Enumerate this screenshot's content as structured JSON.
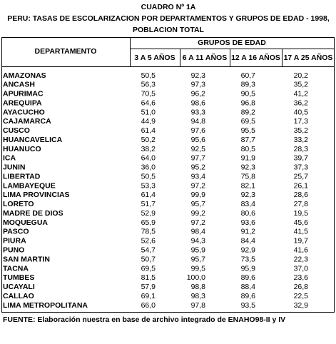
{
  "header": {
    "title": "CUADRO Nº 1A",
    "subtitle": [
      "PERU: TASAS DE ESCOLARIZACION POR DEPARTAMENTOS Y GRUPOS DE EDAD - 1998,",
      "POBLACION TOTAL"
    ]
  },
  "table": {
    "row_header": "DEPARTAMENTO",
    "group_header": "GRUPOS DE EDAD",
    "columns": [
      "3 A 5 AÑOS",
      "6 A 11 AÑOS",
      "12 A 16 AÑOS",
      "17 A 25 AÑOS"
    ],
    "rows": [
      [
        "AMAZONAS",
        "50,5",
        "92,3",
        "60,7",
        "20,2"
      ],
      [
        "ANCASH",
        "56,3",
        "97,3",
        "89,3",
        "35,2"
      ],
      [
        "APURIMAC",
        "70,5",
        "96,2",
        "90,5",
        "41,2"
      ],
      [
        "AREQUIPA",
        "64,6",
        "98,6",
        "96,8",
        "36,2"
      ],
      [
        "AYACUCHO",
        "51,0",
        "93,3",
        "89,2",
        "40,5"
      ],
      [
        "CAJAMARCA",
        "44,9",
        "94,8",
        "69,5",
        "17,3"
      ],
      [
        "CUSCO",
        "61,4",
        "97,6",
        "95,5",
        "35,2"
      ],
      [
        "HUANCAVELICA",
        "50,2",
        "95,6",
        "87,7",
        "33,2"
      ],
      [
        "HUANUCO",
        "38,2",
        "92,5",
        "80,5",
        "28,3"
      ],
      [
        "ICA",
        "64,0",
        "97,7",
        "91,9",
        "39,7"
      ],
      [
        "JUNIN",
        "36,0",
        "95,2",
        "92,3",
        "37,3"
      ],
      [
        "LIBERTAD",
        "50,5",
        "93,4",
        "75,8",
        "25,7"
      ],
      [
        "LAMBAYEQUE",
        "53,3",
        "97,2",
        "82,1",
        "26,1"
      ],
      [
        "LIMA PROVINCIAS",
        "61,4",
        "99,9",
        "92,3",
        "28,6"
      ],
      [
        "LORETO",
        "51,7",
        "95,7",
        "83,4",
        "27,8"
      ],
      [
        "MADRE DE DIOS",
        "52,9",
        "99,2",
        "80,6",
        "19,5"
      ],
      [
        "MOQUEGUA",
        "65,9",
        "97,2",
        "93,6",
        "45,6"
      ],
      [
        "PASCO",
        "78,5",
        "98,4",
        "91,2",
        "41,5"
      ],
      [
        "PIURA",
        "52,6",
        "94,3",
        "84,4",
        "19,7"
      ],
      [
        "PUNO",
        "54,7",
        "95,9",
        "92,9",
        "41,6"
      ],
      [
        "SAN MARTIN",
        "50,7",
        "95,7",
        "73,5",
        "22,3"
      ],
      [
        "TACNA",
        "69,5",
        "99,5",
        "95,9",
        "37,0"
      ],
      [
        "TUMBES",
        "81,5",
        "100,0",
        "89,6",
        "23,6"
      ],
      [
        "UCAYALI",
        "57,9",
        "98,8",
        "88,4",
        "26,8"
      ],
      [
        "CALLAO",
        "69,1",
        "98,3",
        "89,6",
        "22,5"
      ],
      [
        "LIMA METROPOLITANA",
        "66,0",
        "97,8",
        "93,5",
        "32,9"
      ]
    ]
  },
  "footer": {
    "source": "FUENTE: Elaboración nuestra en base de archivo integrado de ENAHO98-II y IV"
  }
}
